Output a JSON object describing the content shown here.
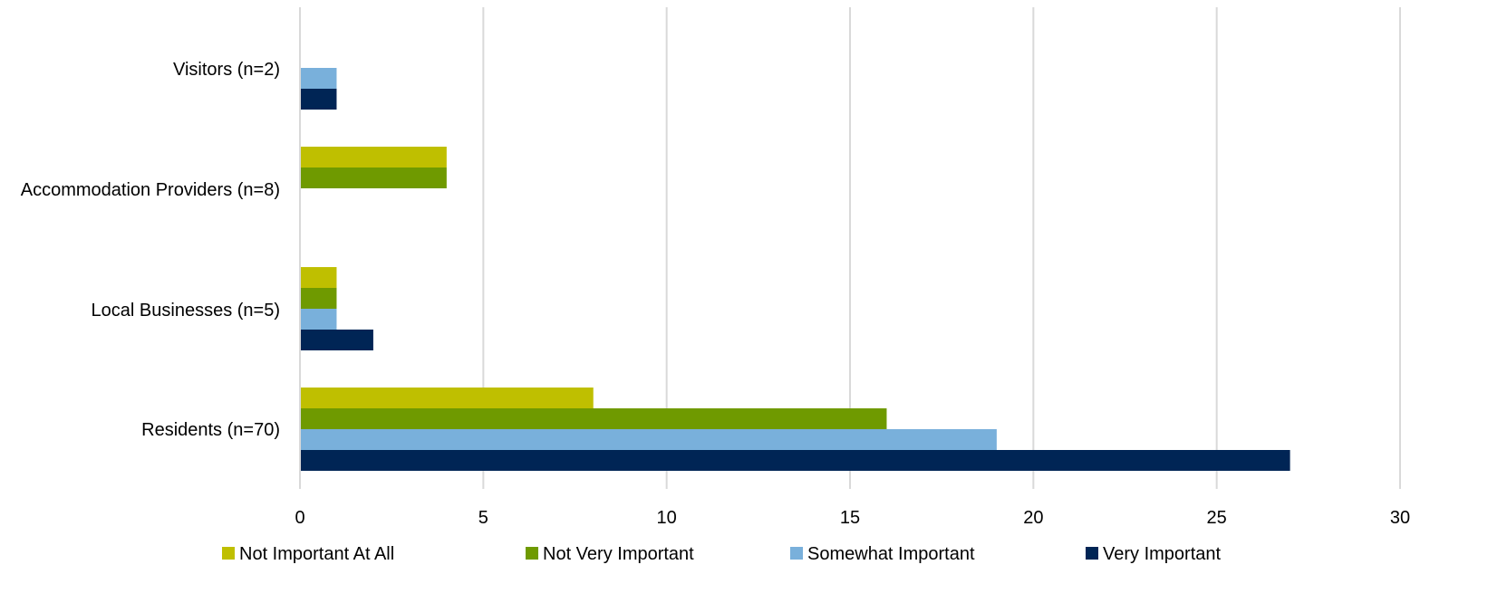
{
  "chart_data": {
    "type": "bar",
    "orientation": "horizontal",
    "title": "",
    "xlabel": "",
    "ylabel": "",
    "xlim": [
      0,
      30
    ],
    "x_ticks": [
      0,
      5,
      10,
      15,
      20,
      25,
      30
    ],
    "x_tick_labels": [
      "0",
      "5",
      "10",
      "15",
      "20",
      "25",
      "30"
    ],
    "grid": "vertical",
    "legend_position": "bottom",
    "categories": [
      "Visitors (n=2)",
      "Accommodation Providers (n=8)",
      "Local Businesses (n=5)",
      "Residents (n=70)"
    ],
    "series": [
      {
        "name": "Not Important At All",
        "color": "#bfbf00",
        "values": [
          0,
          4,
          1,
          8
        ]
      },
      {
        "name": "Not Very Important",
        "color": "#6f9a00",
        "values": [
          0,
          4,
          1,
          16
        ]
      },
      {
        "name": "Somewhat Important",
        "color": "#79b0db",
        "values": [
          1,
          0,
          1,
          19
        ]
      },
      {
        "name": "Very Important",
        "color": "#002555",
        "values": [
          1,
          0,
          2,
          27
        ]
      }
    ]
  }
}
